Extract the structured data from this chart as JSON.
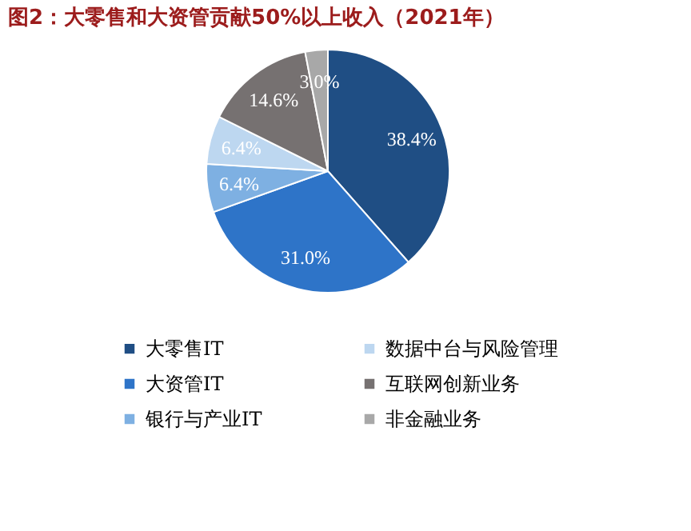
{
  "chart_data": {
    "type": "pie",
    "title": "图2：大零售和大资管贡献50%以上收入（2021年）",
    "categories": [
      "大零售IT",
      "大资管IT",
      "银行与产业IT",
      "数据中台与风险管理",
      "互联网创新业务",
      "非金融业务"
    ],
    "values": [
      38.4,
      31.0,
      6.4,
      6.4,
      14.6,
      3.0
    ],
    "colors": [
      "#1f4e84",
      "#2e74c8",
      "#7eb0e2",
      "#bdd7f0",
      "#767171",
      "#a8a8a8"
    ],
    "value_labels": [
      "38.4%",
      "31.0%",
      "6.4%",
      "6.4%",
      "14.6%",
      "3.0%"
    ],
    "legend": "bottom"
  }
}
